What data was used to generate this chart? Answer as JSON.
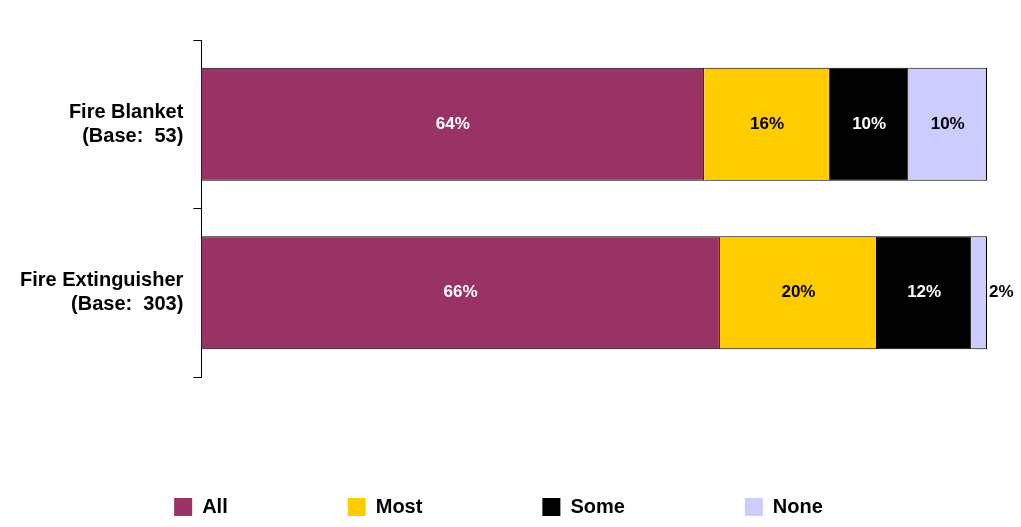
{
  "chart_data": {
    "type": "bar",
    "orientation": "horizontal",
    "stacked": true,
    "categories": [
      "Fire Blanket\n(Base:  53)",
      "Fire Extinguisher\n(Base:  303)"
    ],
    "series": [
      {
        "name": "All",
        "color": "#993366",
        "values": [
          64,
          66
        ],
        "value_labels": [
          "64%",
          "66%"
        ]
      },
      {
        "name": "Most",
        "color": "#ffcc00",
        "values": [
          16,
          20
        ],
        "value_labels": [
          "16%",
          "20%"
        ]
      },
      {
        "name": "Some",
        "color": "#000000",
        "values": [
          10,
          12
        ],
        "value_labels": [
          "10%",
          "12%"
        ]
      },
      {
        "name": "None",
        "color": "#ccccff",
        "values": [
          10,
          2
        ],
        "value_labels": [
          "10%",
          "2%"
        ]
      }
    ],
    "legend": "bottom",
    "tick_labels": "y"
  }
}
